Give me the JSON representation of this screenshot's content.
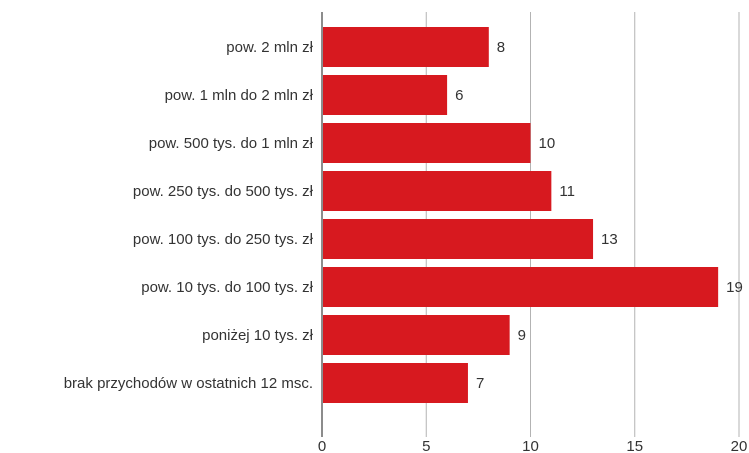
{
  "chart_data": {
    "type": "bar",
    "orientation": "horizontal",
    "categories": [
      "pow. 2 mln zł",
      "pow. 1 mln do 2 mln zł",
      "pow. 500 tys. do 1 mln zł",
      "pow. 250 tys. do 500 tys. zł",
      "pow. 100 tys. do 250 tys. zł",
      "pow. 10 tys. do 100 tys. zł",
      "poniżej 10 tys. zł",
      "brak przychodów w ostatnich 12 msc."
    ],
    "values": [
      8,
      6,
      10,
      11,
      13,
      19,
      9,
      7
    ],
    "x_ticks": [
      0,
      5,
      10,
      15,
      20
    ],
    "xlim": [
      0,
      20
    ],
    "grid": true,
    "legend": "none",
    "bar_color": "#d7191f",
    "data_labels": true
  }
}
